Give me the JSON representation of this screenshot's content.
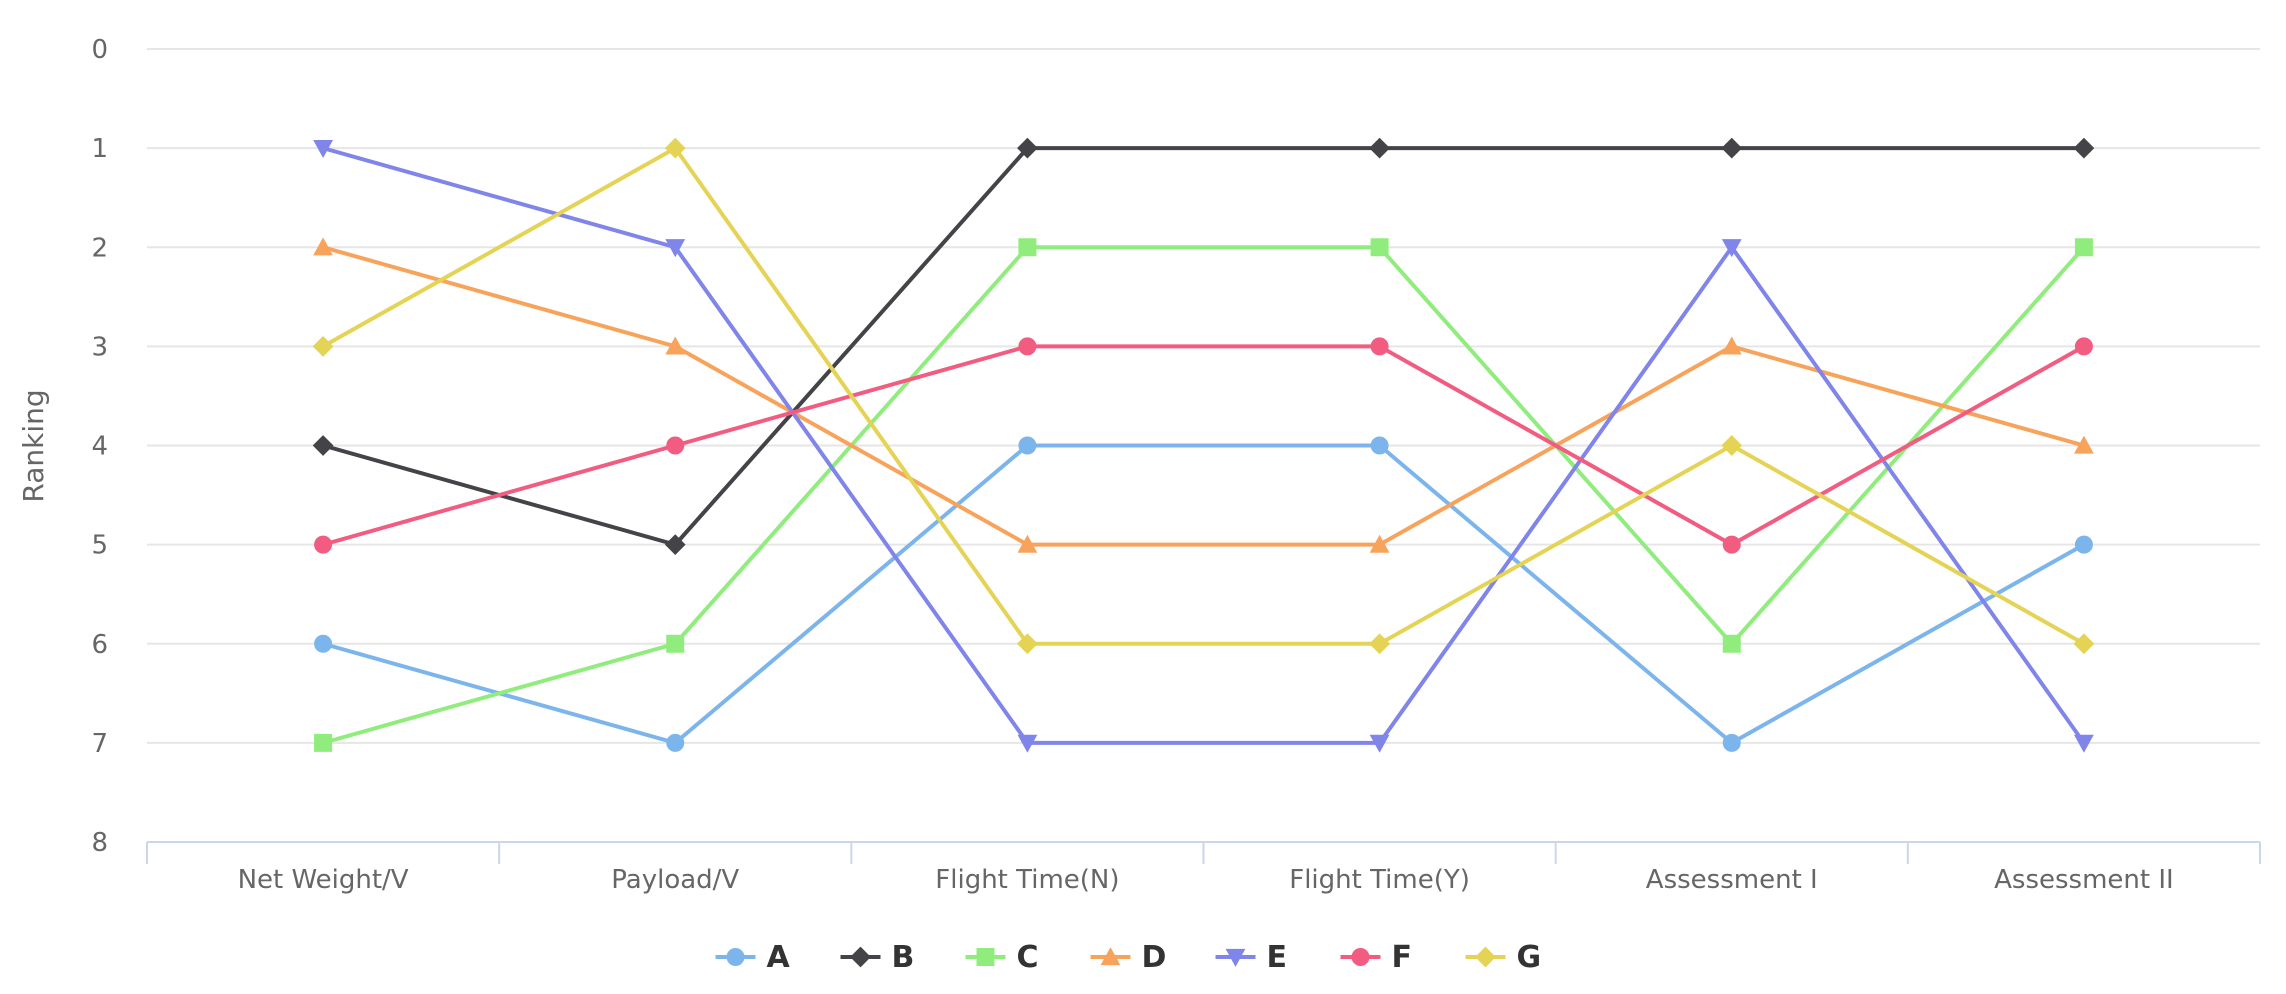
{
  "chart_data": {
    "type": "line",
    "title": "",
    "xlabel": "",
    "ylabel": "Ranking",
    "y_reversed": true,
    "ylim": [
      0,
      8
    ],
    "yticks": [
      0,
      1,
      2,
      3,
      4,
      5,
      6,
      7,
      8
    ],
    "grid": true,
    "legend_position": "bottom-center",
    "categories": [
      "Net Weight/V",
      "Payload/V",
      "Flight Time(N)",
      "Flight Time(Y)",
      "Assessment I",
      "Assessment II"
    ],
    "series": [
      {
        "name": "A",
        "color": "#7cb5ec",
        "marker": "circle",
        "values": [
          6,
          7,
          4,
          4,
          7,
          5
        ]
      },
      {
        "name": "B",
        "color": "#434348",
        "marker": "diamond",
        "values": [
          4,
          5,
          1,
          1,
          1,
          1
        ]
      },
      {
        "name": "C",
        "color": "#90ed7d",
        "marker": "square",
        "values": [
          7,
          6,
          2,
          2,
          6,
          2
        ]
      },
      {
        "name": "D",
        "color": "#f7a35c",
        "marker": "triangle",
        "values": [
          2,
          3,
          5,
          5,
          3,
          4
        ]
      },
      {
        "name": "E",
        "color": "#8085e9",
        "marker": "triangle-down",
        "values": [
          1,
          2,
          7,
          7,
          2,
          7
        ]
      },
      {
        "name": "F",
        "color": "#f15c80",
        "marker": "circle",
        "values": [
          5,
          4,
          3,
          3,
          5,
          3
        ]
      },
      {
        "name": "G",
        "color": "#e4d354",
        "marker": "diamond",
        "values": [
          3,
          1,
          6,
          6,
          4,
          6
        ]
      }
    ]
  }
}
